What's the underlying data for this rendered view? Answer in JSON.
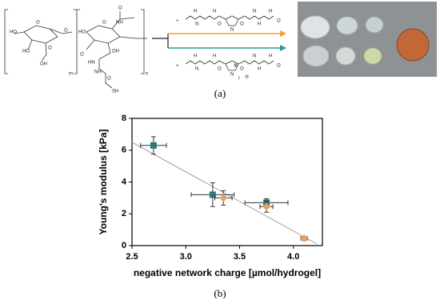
{
  "panel_a": {
    "label": "(a)",
    "structure_texts": [
      "HO",
      "O",
      "O",
      "HO",
      "OH",
      "O",
      "m",
      "HO",
      "NH",
      "O",
      "O",
      "HN",
      "O",
      "OH",
      "n",
      "NH",
      "SH",
      "O",
      "+",
      "H",
      "N",
      "H",
      "O",
      "N",
      "O",
      "N",
      "H",
      "H",
      "O",
      "+",
      "H",
      "N",
      "H",
      "O",
      "N",
      "O",
      "N",
      "H",
      "H",
      "O",
      "⊕",
      "I",
      "⊖"
    ]
  },
  "panel_b": {
    "label": "(b)"
  },
  "chart_data": {
    "type": "scatter",
    "xlabel": "negative network charge [µmol/hydrogel]",
    "ylabel": "Young's modulus [kPa]",
    "xlim": [
      2.5,
      4.27
    ],
    "ylim": [
      0,
      8
    ],
    "xticks": [
      2.5,
      {
        "value": 3,
        "label": "3.0"
      },
      3.5,
      {
        "value": 4,
        "label": "4.0"
      }
    ],
    "yticks": [
      0,
      2,
      4,
      6,
      8
    ],
    "series": [
      {
        "color": "#2b7b78",
        "marker": "square",
        "x": [
          2.7,
          3.25,
          3.75
        ],
        "values": [
          6.3,
          3.2,
          2.7
        ],
        "x_errors": [
          0.12,
          0.2,
          0.2
        ],
        "errors": [
          0.55,
          0.75,
          0.25
        ]
      },
      {
        "color": "#e8a060",
        "marker": "diamond",
        "x": [
          3.35,
          3.75,
          4.1
        ],
        "values": [
          3.0,
          2.45,
          0.45
        ],
        "x_errors": [
          0.08,
          0.06,
          0.03
        ],
        "errors": [
          0.45,
          0.35,
          0.1
        ]
      }
    ],
    "fit_line": {
      "x": [
        2.5,
        4.22
      ],
      "values": [
        6.5,
        0.1
      ],
      "color": "#999999"
    }
  }
}
